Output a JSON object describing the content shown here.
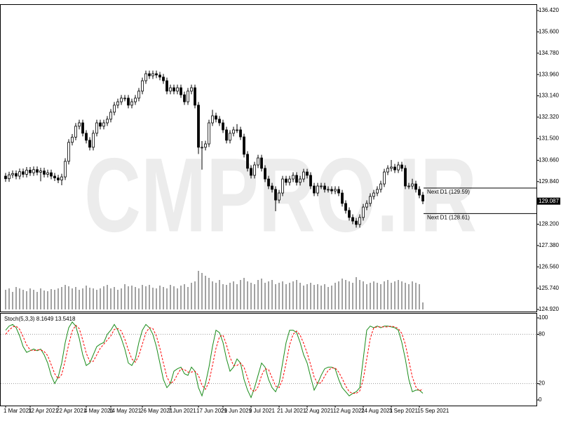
{
  "chart_data": [
    {
      "type": "candlestick",
      "categories": [
        "1 Mar 2021",
        null,
        null,
        null,
        null,
        null,
        null,
        "12 Apr 2021",
        null,
        null,
        null,
        null,
        null,
        null,
        null,
        "22 Apr 2021",
        null,
        null,
        null,
        null,
        null,
        null,
        null,
        "4 May 2021",
        null,
        null,
        null,
        null,
        null,
        null,
        "14 May 2021",
        null,
        null,
        null,
        null,
        null,
        null,
        null,
        null,
        "26 May 2021",
        null,
        null,
        null,
        null,
        null,
        null,
        null,
        "7 Jun 2021",
        null,
        null,
        null,
        null,
        null,
        null,
        null,
        "17 Jun 2021",
        null,
        null,
        null,
        null,
        null,
        null,
        "29 Jun 2021",
        null,
        null,
        null,
        null,
        null,
        null,
        null,
        "9 Jul 2021",
        null,
        null,
        null,
        null,
        null,
        null,
        null,
        "21 Jul 2021",
        null,
        null,
        null,
        null,
        null,
        null,
        null,
        "2 Aug 2021",
        null,
        null,
        null,
        null,
        null,
        null,
        null,
        "12 Aug 2021",
        null,
        null,
        null,
        null,
        null,
        null,
        null,
        "24 Aug 2021",
        null,
        null,
        null,
        null,
        null,
        null,
        null,
        "3 Sep 2021",
        null,
        null,
        null,
        null,
        null,
        null,
        null,
        "15 Sep 2021",
        null
      ],
      "open": [
        130.05,
        129.95,
        130.1,
        130.15,
        130.05,
        130.22,
        130.12,
        130.28,
        130.18,
        130.3,
        130.2,
        130.25,
        130.12,
        130.18,
        130.05,
        129.98,
        129.9,
        130.02,
        130.62,
        131.35,
        131.55,
        131.97,
        132.1,
        131.7,
        131.43,
        131.16,
        131.7,
        132.1,
        131.97,
        132.1,
        132.24,
        132.51,
        132.78,
        132.91,
        133.05,
        133.05,
        132.78,
        132.91,
        133.05,
        133.32,
        133.72,
        133.99,
        133.91,
        133.99,
        133.94,
        133.86,
        133.72,
        133.32,
        133.45,
        133.32,
        133.45,
        133.18,
        132.91,
        133.32,
        133.45,
        132.78,
        131.16,
        131.16,
        131.29,
        132.1,
        132.37,
        132.24,
        132.1,
        131.83,
        131.43,
        131.7,
        131.83,
        131.83,
        131.56,
        130.89,
        130.35,
        130.08,
        130.48,
        130.75,
        130.35,
        129.94,
        129.67,
        129.54,
        129.13,
        129.4,
        129.94,
        129.81,
        129.94,
        130.08,
        129.81,
        129.94,
        130.21,
        130.08,
        129.67,
        129.4,
        129.67,
        129.67,
        129.54,
        129.54,
        129.48,
        129.54,
        129.4,
        129.0,
        128.73,
        128.46,
        128.32,
        128.19,
        128.46,
        128.86,
        129.0,
        129.27,
        129.4,
        129.54,
        129.75,
        130.21,
        130.35,
        130.4,
        130.29,
        130.48,
        130.35,
        129.67,
        129.67,
        129.75,
        129.54,
        129.32
      ],
      "high": [
        130.17,
        130.22,
        130.27,
        130.27,
        130.34,
        130.34,
        130.4,
        130.4,
        130.42,
        130.42,
        130.37,
        130.37,
        130.3,
        130.3,
        130.17,
        130.1,
        130.14,
        130.74,
        131.47,
        131.67,
        132.09,
        132.22,
        132.22,
        131.82,
        131.55,
        131.82,
        132.22,
        132.22,
        132.22,
        132.36,
        132.63,
        132.9,
        133.03,
        133.17,
        133.17,
        133.17,
        133.03,
        133.17,
        133.44,
        133.84,
        134.11,
        134.11,
        134.11,
        134.11,
        134.06,
        133.98,
        133.84,
        133.57,
        133.57,
        133.57,
        133.57,
        133.3,
        133.44,
        133.57,
        133.57,
        132.9,
        131.4,
        131.41,
        132.22,
        132.6,
        132.49,
        132.36,
        132.22,
        131.95,
        131.82,
        131.95,
        132.05,
        131.95,
        131.68,
        131.01,
        130.47,
        130.6,
        130.87,
        130.87,
        130.47,
        130.06,
        129.79,
        129.66,
        129.52,
        130.06,
        130.06,
        130.06,
        130.2,
        130.2,
        130.06,
        130.33,
        130.33,
        130.2,
        129.79,
        129.79,
        129.79,
        129.79,
        129.66,
        129.66,
        129.66,
        129.66,
        129.52,
        129.12,
        128.85,
        128.58,
        128.44,
        128.58,
        128.98,
        129.12,
        129.39,
        129.52,
        129.66,
        129.87,
        130.33,
        130.47,
        130.67,
        130.52,
        130.6,
        130.6,
        130.47,
        129.79,
        129.95,
        129.87,
        129.66,
        129.44
      ],
      "low": [
        129.83,
        129.83,
        129.98,
        129.93,
        129.93,
        130.0,
        130.0,
        130.06,
        130.06,
        130.08,
        129.85,
        130.0,
        130.0,
        129.93,
        129.86,
        129.78,
        129.7,
        129.9,
        130.5,
        131.23,
        131.43,
        131.85,
        131.58,
        131.31,
        131.04,
        131.04,
        131.58,
        131.85,
        131.85,
        131.98,
        132.12,
        132.39,
        132.66,
        132.79,
        132.93,
        132.66,
        132.66,
        132.79,
        132.93,
        133.2,
        133.6,
        133.79,
        133.79,
        133.82,
        133.74,
        133.6,
        133.2,
        133.2,
        133.2,
        133.2,
        133.06,
        132.79,
        132.79,
        133.2,
        132.66,
        130.9,
        130.3,
        131.04,
        131.17,
        131.98,
        132.12,
        131.98,
        131.71,
        131.31,
        131.31,
        131.58,
        131.71,
        131.44,
        130.77,
        130.23,
        129.96,
        129.96,
        130.36,
        130.23,
        129.82,
        129.55,
        129.42,
        128.7,
        129.01,
        129.28,
        129.69,
        129.69,
        129.82,
        129.69,
        129.69,
        129.82,
        129.96,
        129.55,
        129.28,
        129.28,
        129.55,
        129.42,
        129.42,
        129.36,
        129.36,
        129.28,
        128.88,
        128.61,
        128.34,
        128.2,
        128.07,
        128.07,
        128.34,
        128.74,
        128.88,
        129.15,
        129.28,
        129.42,
        129.63,
        130.09,
        130.23,
        130.17,
        130.17,
        130.23,
        129.55,
        129.55,
        129.55,
        129.42,
        129.2,
        128.97
      ],
      "close": [
        129.95,
        130.1,
        130.15,
        130.05,
        130.22,
        130.12,
        130.28,
        130.18,
        130.3,
        130.2,
        130.25,
        130.12,
        130.18,
        130.05,
        129.98,
        129.9,
        130.02,
        130.62,
        131.35,
        131.55,
        131.97,
        132.1,
        131.7,
        131.43,
        131.16,
        131.7,
        132.1,
        131.97,
        132.1,
        132.24,
        132.51,
        132.78,
        132.91,
        133.05,
        133.05,
        132.78,
        132.91,
        133.05,
        133.32,
        133.72,
        133.99,
        133.91,
        133.99,
        133.94,
        133.86,
        133.72,
        133.32,
        133.45,
        133.32,
        133.45,
        133.18,
        132.91,
        133.32,
        133.45,
        132.78,
        131.16,
        131.16,
        131.29,
        132.1,
        132.37,
        132.24,
        132.1,
        131.83,
        131.43,
        131.7,
        131.83,
        131.83,
        131.56,
        130.89,
        130.35,
        130.08,
        130.48,
        130.75,
        130.35,
        129.94,
        129.67,
        129.54,
        129.13,
        129.4,
        129.94,
        129.81,
        129.94,
        130.08,
        129.81,
        129.94,
        130.21,
        130.08,
        129.67,
        129.4,
        129.67,
        129.67,
        129.54,
        129.54,
        129.48,
        129.54,
        129.4,
        129.0,
        128.73,
        128.46,
        128.32,
        128.19,
        128.46,
        128.86,
        129.0,
        129.27,
        129.4,
        129.54,
        129.75,
        130.21,
        130.35,
        130.4,
        130.29,
        130.48,
        130.35,
        129.67,
        129.67,
        129.75,
        129.54,
        129.32,
        129.09
      ],
      "volume": [
        28,
        30,
        25,
        32,
        30,
        28,
        26,
        30,
        28,
        25,
        30,
        27,
        26,
        29,
        28,
        30,
        32,
        35,
        33,
        30,
        32,
        28,
        30,
        34,
        31,
        30,
        28,
        30,
        33,
        35,
        30,
        32,
        28,
        30,
        36,
        33,
        34,
        32,
        30,
        35,
        33,
        35,
        31,
        30,
        34,
        32,
        30,
        35,
        33,
        30,
        34,
        36,
        32,
        38,
        40,
        55,
        52,
        48,
        45,
        40,
        38,
        42,
        36,
        35,
        38,
        40,
        36,
        42,
        45,
        40,
        38,
        36,
        42,
        44,
        38,
        40,
        42,
        36,
        38,
        40,
        36,
        38,
        40,
        42,
        38,
        34,
        36,
        38,
        35,
        36,
        34,
        36,
        32,
        34,
        38,
        40,
        44,
        42,
        40,
        38,
        46,
        42,
        40,
        36,
        38,
        40,
        38,
        36,
        40,
        42,
        38,
        40,
        42,
        40,
        38,
        36,
        40,
        38,
        36,
        10
      ],
      "ylim": [
        124.84,
        136.61
      ],
      "yticks": [
        {
          "value": 136.42,
          "label": "136.420"
        },
        {
          "value": 135.6,
          "label": "135.600"
        },
        {
          "value": 134.78,
          "label": "134.780"
        },
        {
          "value": 133.96,
          "label": "133.960"
        },
        {
          "value": 133.14,
          "label": "133.140"
        },
        {
          "value": 132.32,
          "label": "132.320"
        },
        {
          "value": 131.5,
          "label": "131.500"
        },
        {
          "value": 130.66,
          "label": "130.660"
        },
        {
          "value": 129.84,
          "label": "129.840"
        },
        {
          "value": 128.2,
          "label": "128.200"
        },
        {
          "value": 127.38,
          "label": "127.380"
        },
        {
          "value": 126.56,
          "label": "126.560"
        },
        {
          "value": 125.74,
          "label": "125.740"
        },
        {
          "value": 124.92,
          "label": "124.920"
        }
      ],
      "current_price": 129.087,
      "annotations": [
        {
          "label": "Next D1 (129.59)",
          "value": 129.59
        },
        {
          "label": "Next D1 (128.61)",
          "value": 128.61
        }
      ],
      "watermark": "CMPRO.IR",
      "up_color": "#ffffff",
      "down_color": "#000000",
      "volume_color": "#444444"
    },
    {
      "type": "line",
      "title": "Stoch(5,3,3) 8.1649 13.5418",
      "series": [
        {
          "color": "#1a8c1a",
          "dashed": false,
          "values": [
            85,
            90,
            92,
            88,
            78,
            65,
            58,
            60,
            62,
            60,
            62,
            55,
            45,
            30,
            20,
            28,
            45,
            70,
            88,
            95,
            90,
            75,
            55,
            42,
            45,
            55,
            65,
            68,
            70,
            80,
            85,
            92,
            85,
            75,
            62,
            45,
            42,
            50,
            70,
            85,
            92,
            88,
            80,
            65,
            45,
            25,
            15,
            20,
            35,
            38,
            40,
            32,
            30,
            40,
            35,
            15,
            5,
            20,
            40,
            65,
            85,
            82,
            70,
            50,
            35,
            40,
            50,
            45,
            25,
            12,
            3,
            15,
            30,
            45,
            40,
            25,
            15,
            10,
            20,
            45,
            70,
            85,
            85,
            82,
            70,
            55,
            45,
            28,
            12,
            20,
            30,
            38,
            40,
            40,
            38,
            25,
            15,
            10,
            5,
            8,
            10,
            15,
            50,
            85,
            90,
            88,
            90,
            88,
            90,
            90,
            89,
            88,
            85,
            70,
            50,
            25,
            10,
            12,
            12,
            8.1649
          ]
        },
        {
          "color": "#ff0000",
          "dashed": true,
          "values": [
            80,
            85,
            89,
            90,
            86,
            77,
            67,
            61,
            60,
            61,
            61,
            59,
            54,
            43,
            32,
            26,
            31,
            48,
            68,
            84,
            91,
            87,
            73,
            57,
            47,
            47,
            55,
            63,
            68,
            73,
            78,
            86,
            87,
            84,
            74,
            61,
            50,
            46,
            54,
            68,
            82,
            88,
            87,
            78,
            63,
            45,
            28,
            20,
            23,
            31,
            38,
            37,
            34,
            34,
            35,
            30,
            18,
            13,
            22,
            42,
            63,
            77,
            79,
            67,
            52,
            42,
            42,
            45,
            40,
            27,
            13,
            10,
            16,
            30,
            38,
            37,
            27,
            17,
            15,
            25,
            45,
            67,
            80,
            84,
            79,
            69,
            57,
            43,
            28,
            20,
            21,
            29,
            36,
            39,
            39,
            34,
            26,
            17,
            10,
            8,
            8,
            11,
            25,
            50,
            75,
            88,
            89,
            89,
            89,
            89,
            90,
            89,
            87,
            81,
            68,
            48,
            28,
            16,
            11,
            13.5418
          ]
        }
      ],
      "ylim": [
        -6.8,
        106
      ],
      "yticks": [
        0,
        20,
        80,
        100
      ],
      "grid_levels": [
        20,
        80
      ]
    }
  ]
}
